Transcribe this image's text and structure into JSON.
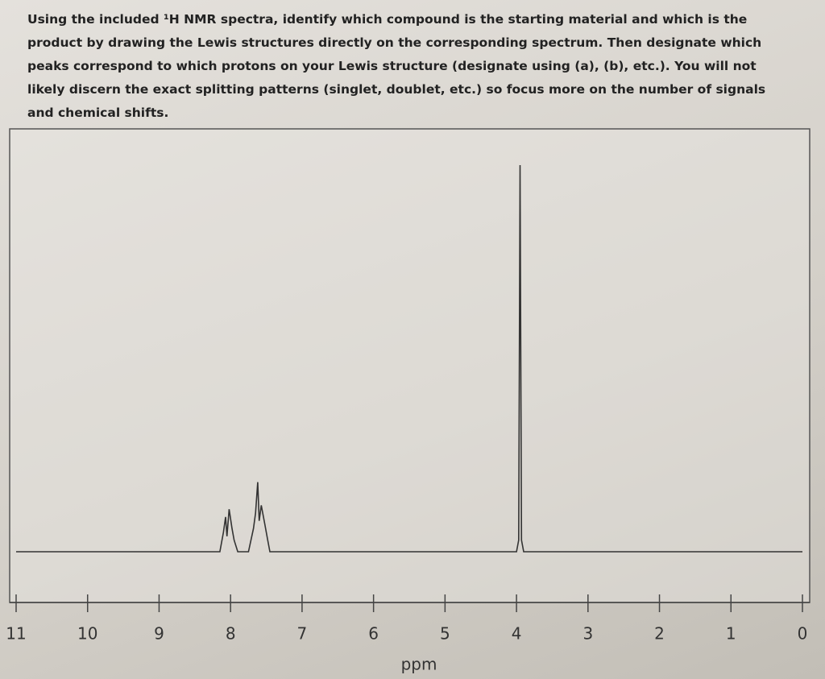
{
  "text": {
    "lines": [
      "Using the included ¹H NMR spectra, identify which compound is the starting material and which is the",
      "product by drawing the Lewis structures directly on the corresponding spectrum. Then designate which",
      "peaks correspond to which protons on your Lewis structure (designate using (a), (b), etc.). You will not",
      "likely discern the exact splitting patterns (singlet, doublet, etc.) so focus more on the number of signals",
      "and chemical shifts."
    ]
  },
  "chart_data": {
    "type": "line",
    "xlabel": "ppm",
    "color": "#333333",
    "x": [
      11,
      8.15,
      8.1,
      8.07,
      8.05,
      8.02,
      7.98,
      7.95,
      7.9,
      7.75,
      7.68,
      7.65,
      7.62,
      7.6,
      7.57,
      7.52,
      7.48,
      7.45,
      4.0,
      3.97,
      3.95,
      3.93,
      3.9,
      0
    ],
    "values": [
      0,
      0,
      5,
      9,
      4,
      11,
      6,
      3,
      0,
      0,
      6,
      10,
      18,
      8,
      12,
      7,
      3,
      0,
      0,
      3,
      100,
      3,
      0,
      0
    ],
    "xlim": [
      11,
      0
    ],
    "xticks": [
      11,
      10,
      9,
      8,
      7,
      6,
      5,
      4,
      3,
      2,
      1,
      0
    ],
    "ylim": [
      0,
      100
    ]
  }
}
